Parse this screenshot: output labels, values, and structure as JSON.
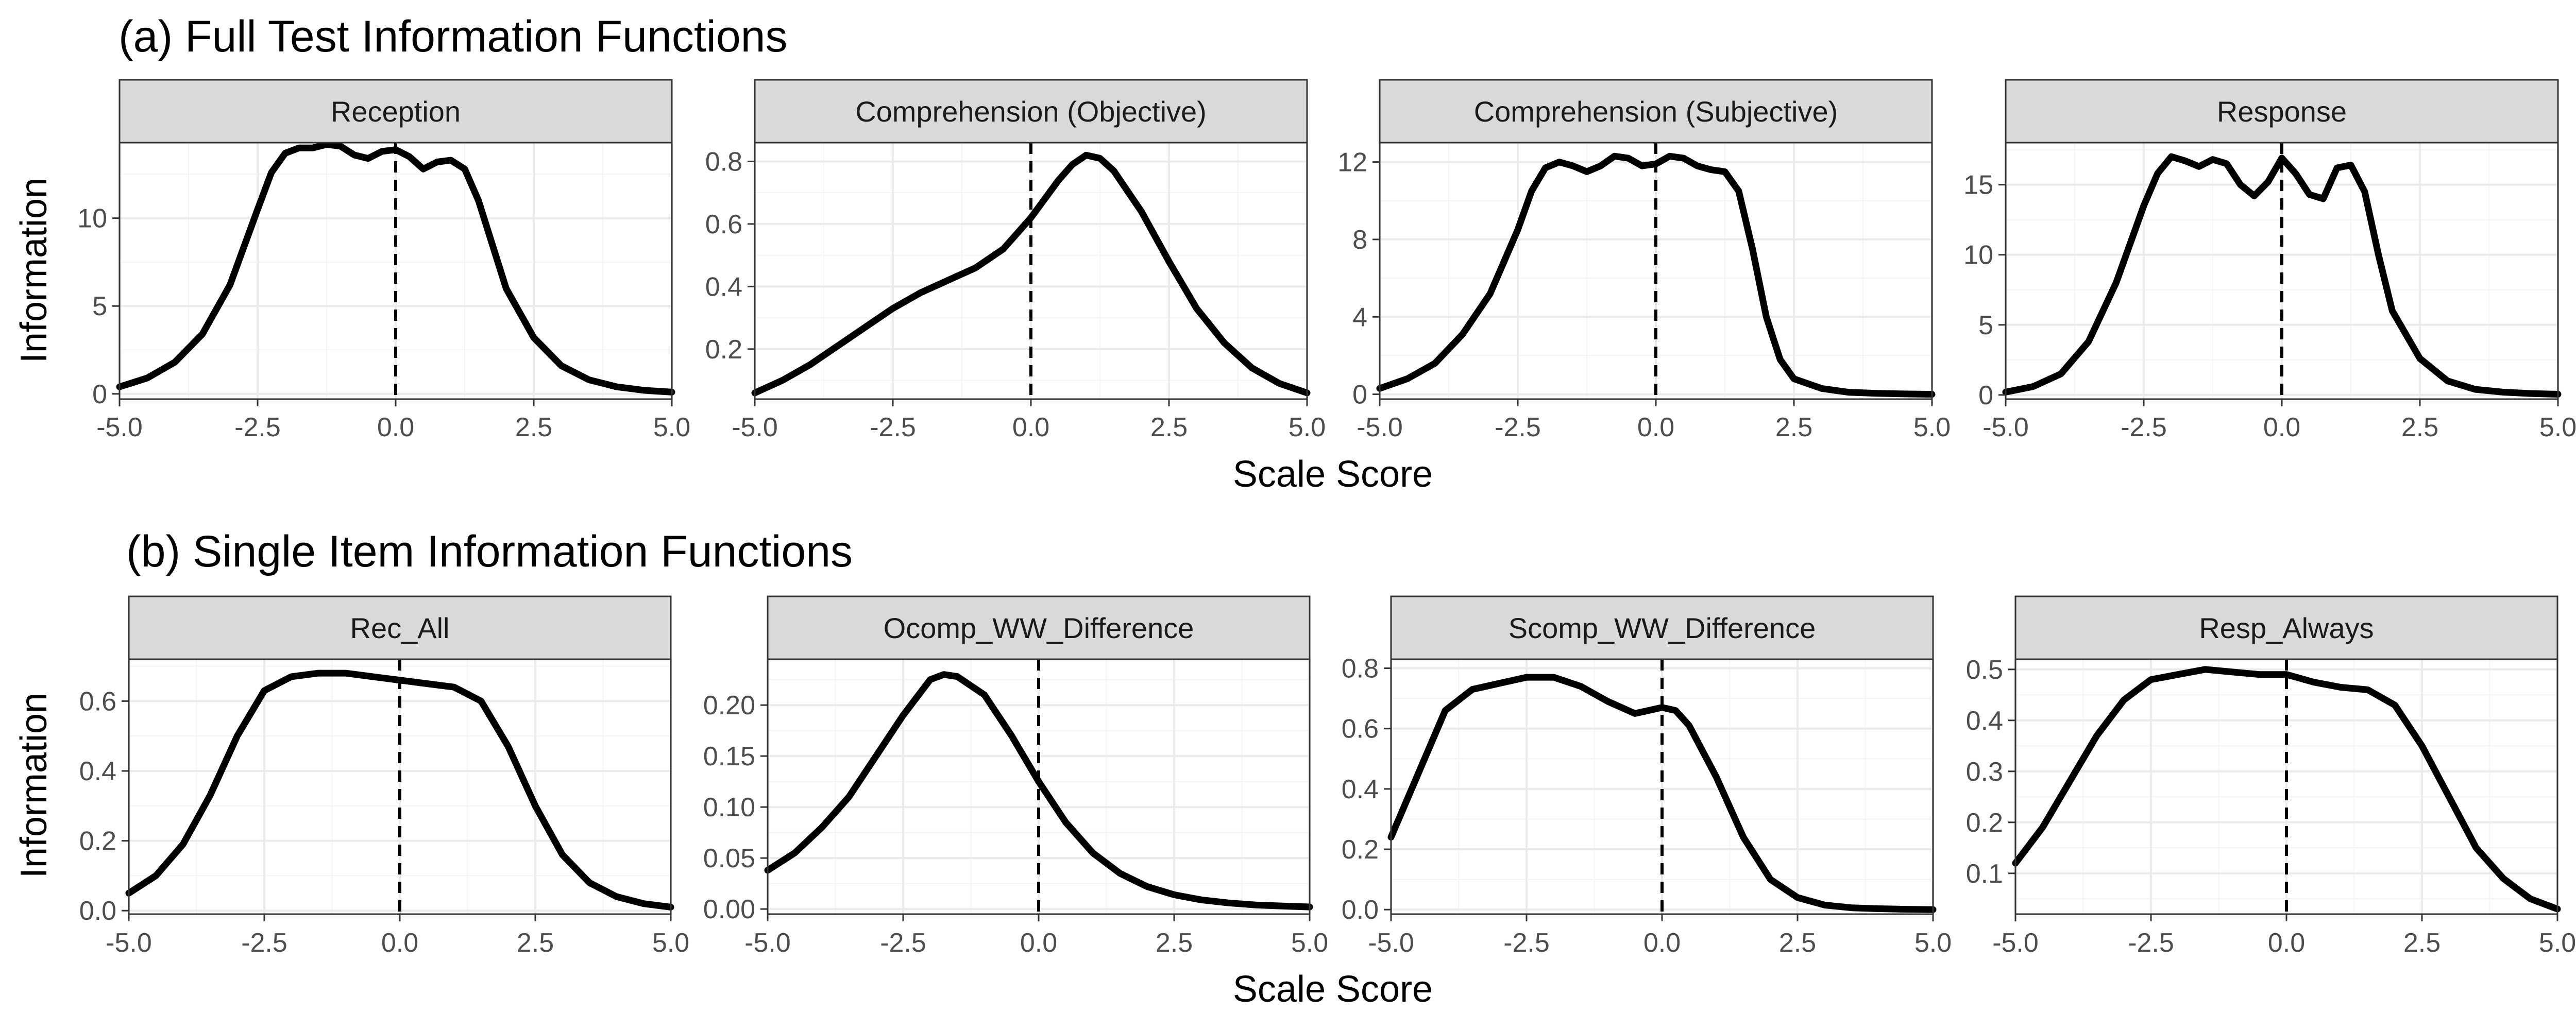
{
  "figure": {
    "x_axis_title": "Scale Score",
    "y_axis_title": "Information"
  },
  "chart_data": [
    {
      "section": "(a) Full Test Information Functions",
      "type": "line",
      "facets": [
        {
          "title": "Reception",
          "xlim": [
            -5.0,
            5.0
          ],
          "ylim": [
            -0.3,
            14.3
          ],
          "xticks": [
            -5.0,
            -2.5,
            0.0,
            2.5,
            5.0
          ],
          "xtick_labels": [
            "-5.0",
            "-2.5",
            "0.0",
            "2.5",
            "5.0"
          ],
          "yticks": [
            0,
            5,
            10
          ],
          "ytick_labels": [
            "0",
            "5",
            "10"
          ],
          "ref_line_x": 0.0,
          "x": [
            -5.0,
            -4.5,
            -4.0,
            -3.5,
            -3.0,
            -2.5,
            -2.25,
            -2.0,
            -1.75,
            -1.5,
            -1.25,
            -1.0,
            -0.75,
            -0.5,
            -0.25,
            0.0,
            0.25,
            0.5,
            0.75,
            1.0,
            1.25,
            1.5,
            1.75,
            2.0,
            2.5,
            3.0,
            3.5,
            4.0,
            4.5,
            5.0
          ],
          "y": [
            0.4,
            0.9,
            1.8,
            3.4,
            6.2,
            10.5,
            12.6,
            13.7,
            14.0,
            14.0,
            14.2,
            14.1,
            13.6,
            13.4,
            13.8,
            13.9,
            13.5,
            12.8,
            13.2,
            13.3,
            12.8,
            11.0,
            8.5,
            6.0,
            3.2,
            1.6,
            0.8,
            0.4,
            0.2,
            0.1
          ]
        },
        {
          "title": "Comprehension (Objective)",
          "xlim": [
            -5.0,
            5.0
          ],
          "ylim": [
            0.04,
            0.86
          ],
          "xticks": [
            -5.0,
            -2.5,
            0.0,
            2.5,
            5.0
          ],
          "xtick_labels": [
            "-5.0",
            "-2.5",
            "0.0",
            "2.5",
            "5.0"
          ],
          "yticks": [
            0.2,
            0.4,
            0.6,
            0.8
          ],
          "ytick_labels": [
            "0.2",
            "0.4",
            "0.6",
            "0.8"
          ],
          "ref_line_x": 0.0,
          "x": [
            -5.0,
            -4.5,
            -4.0,
            -3.5,
            -3.0,
            -2.5,
            -2.0,
            -1.5,
            -1.0,
            -0.5,
            0.0,
            0.5,
            0.75,
            1.0,
            1.25,
            1.5,
            2.0,
            2.5,
            3.0,
            3.5,
            4.0,
            4.5,
            5.0
          ],
          "y": [
            0.06,
            0.1,
            0.15,
            0.21,
            0.27,
            0.33,
            0.38,
            0.42,
            0.46,
            0.52,
            0.62,
            0.74,
            0.79,
            0.82,
            0.81,
            0.77,
            0.64,
            0.48,
            0.33,
            0.22,
            0.14,
            0.09,
            0.06
          ]
        },
        {
          "title": "Comprehension (Subjective)",
          "xlim": [
            -5.0,
            5.0
          ],
          "ylim": [
            -0.25,
            13.0
          ],
          "xticks": [
            -5.0,
            -2.5,
            0.0,
            2.5,
            5.0
          ],
          "xtick_labels": [
            "-5.0",
            "-2.5",
            "0.0",
            "2.5",
            "5.0"
          ],
          "yticks": [
            0,
            4,
            8,
            12
          ],
          "ytick_labels": [
            "0",
            "4",
            "8",
            "12"
          ],
          "ref_line_x": 0.0,
          "x": [
            -5.0,
            -4.5,
            -4.0,
            -3.5,
            -3.0,
            -2.5,
            -2.25,
            -2.0,
            -1.75,
            -1.5,
            -1.25,
            -1.0,
            -0.75,
            -0.5,
            -0.25,
            0.0,
            0.25,
            0.5,
            0.75,
            1.0,
            1.25,
            1.5,
            1.75,
            2.0,
            2.25,
            2.5,
            3.0,
            3.5,
            4.0,
            4.5,
            5.0
          ],
          "y": [
            0.3,
            0.8,
            1.6,
            3.1,
            5.2,
            8.5,
            10.5,
            11.7,
            12.0,
            11.8,
            11.5,
            11.8,
            12.3,
            12.2,
            11.8,
            11.9,
            12.3,
            12.2,
            11.8,
            11.6,
            11.5,
            10.5,
            7.5,
            4.0,
            1.8,
            0.8,
            0.3,
            0.1,
            0.05,
            0.02,
            0.0
          ]
        },
        {
          "title": "Response",
          "xlim": [
            -5.0,
            5.0
          ],
          "ylim": [
            -0.3,
            18.0
          ],
          "xticks": [
            -5.0,
            -2.5,
            0.0,
            2.5,
            5.0
          ],
          "xtick_labels": [
            "-5.0",
            "-2.5",
            "0.0",
            "2.5",
            "5.0"
          ],
          "yticks": [
            0,
            5,
            10,
            15
          ],
          "ytick_labels": [
            "0",
            "5",
            "10",
            "15"
          ],
          "ref_line_x": 0.0,
          "x": [
            -5.0,
            -4.5,
            -4.0,
            -3.5,
            -3.0,
            -2.5,
            -2.25,
            -2.0,
            -1.75,
            -1.5,
            -1.25,
            -1.0,
            -0.75,
            -0.5,
            -0.25,
            0.0,
            0.25,
            0.5,
            0.75,
            1.0,
            1.25,
            1.5,
            1.75,
            2.0,
            2.5,
            3.0,
            3.5,
            4.0,
            4.5,
            5.0
          ],
          "y": [
            0.2,
            0.6,
            1.5,
            3.8,
            8.0,
            13.5,
            15.8,
            17.0,
            16.7,
            16.3,
            16.8,
            16.5,
            15.0,
            14.2,
            15.2,
            16.9,
            15.8,
            14.3,
            14.0,
            16.2,
            16.4,
            14.5,
            10.0,
            6.0,
            2.6,
            1.0,
            0.4,
            0.2,
            0.1,
            0.05
          ]
        }
      ]
    },
    {
      "section": "(b) Single Item Information Functions",
      "type": "line",
      "facets": [
        {
          "title": "Rec_All",
          "xlim": [
            -5.0,
            5.0
          ],
          "ylim": [
            -0.01,
            0.72
          ],
          "xticks": [
            -5.0,
            -2.5,
            0.0,
            2.5,
            5.0
          ],
          "xtick_labels": [
            "-5.0",
            "-2.5",
            "0.0",
            "2.5",
            "5.0"
          ],
          "yticks": [
            0.0,
            0.2,
            0.4,
            0.6
          ],
          "ytick_labels": [
            "0.0",
            "0.2",
            "0.4",
            "0.6"
          ],
          "ref_line_x": 0.0,
          "x": [
            -5.0,
            -4.5,
            -4.0,
            -3.5,
            -3.0,
            -2.5,
            -2.0,
            -1.5,
            -1.0,
            -0.5,
            0.0,
            0.5,
            1.0,
            1.5,
            2.0,
            2.5,
            3.0,
            3.5,
            4.0,
            4.5,
            5.0
          ],
          "y": [
            0.05,
            0.1,
            0.19,
            0.33,
            0.5,
            0.63,
            0.67,
            0.68,
            0.68,
            0.67,
            0.66,
            0.65,
            0.64,
            0.6,
            0.47,
            0.3,
            0.16,
            0.08,
            0.04,
            0.02,
            0.01
          ]
        },
        {
          "title": "Ocomp_WW_Difference",
          "xlim": [
            -5.0,
            5.0
          ],
          "ylim": [
            -0.005,
            0.245
          ],
          "xticks": [
            -5.0,
            -2.5,
            0.0,
            2.5,
            5.0
          ],
          "xtick_labels": [
            "-5.0",
            "-2.5",
            "0.0",
            "2.5",
            "5.0"
          ],
          "yticks": [
            0.0,
            0.05,
            0.1,
            0.15,
            0.2
          ],
          "ytick_labels": [
            "0.00",
            "0.05",
            "0.10",
            "0.15",
            "0.20"
          ],
          "ref_line_x": 0.0,
          "x": [
            -5.0,
            -4.5,
            -4.0,
            -3.5,
            -3.0,
            -2.5,
            -2.0,
            -1.75,
            -1.5,
            -1.0,
            -0.5,
            0.0,
            0.5,
            1.0,
            1.5,
            2.0,
            2.5,
            3.0,
            3.5,
            4.0,
            4.5,
            5.0
          ],
          "y": [
            0.038,
            0.055,
            0.08,
            0.11,
            0.15,
            0.19,
            0.225,
            0.23,
            0.228,
            0.21,
            0.17,
            0.125,
            0.085,
            0.055,
            0.035,
            0.022,
            0.014,
            0.009,
            0.006,
            0.004,
            0.003,
            0.002
          ]
        },
        {
          "title": "Scomp_WW_Difference",
          "xlim": [
            -5.0,
            5.0
          ],
          "ylim": [
            -0.015,
            0.83
          ],
          "xticks": [
            -5.0,
            -2.5,
            0.0,
            2.5,
            5.0
          ],
          "xtick_labels": [
            "-5.0",
            "-2.5",
            "0.0",
            "2.5",
            "5.0"
          ],
          "yticks": [
            0.0,
            0.2,
            0.4,
            0.6,
            0.8
          ],
          "ytick_labels": [
            "0.0",
            "0.2",
            "0.4",
            "0.6",
            "0.8"
          ],
          "ref_line_x": 0.0,
          "x": [
            -5.0,
            -4.5,
            -4.0,
            -3.5,
            -3.0,
            -2.5,
            -2.0,
            -1.5,
            -1.0,
            -0.5,
            -0.25,
            0.0,
            0.25,
            0.5,
            1.0,
            1.5,
            2.0,
            2.5,
            3.0,
            3.5,
            4.0,
            4.5,
            5.0
          ],
          "y": [
            0.24,
            0.45,
            0.66,
            0.73,
            0.75,
            0.77,
            0.77,
            0.74,
            0.69,
            0.65,
            0.66,
            0.67,
            0.66,
            0.61,
            0.44,
            0.24,
            0.1,
            0.04,
            0.015,
            0.006,
            0.003,
            0.001,
            0.0
          ]
        },
        {
          "title": "Resp_Always",
          "xlim": [
            -5.0,
            5.0
          ],
          "ylim": [
            0.02,
            0.52
          ],
          "xticks": [
            -5.0,
            -2.5,
            0.0,
            2.5,
            5.0
          ],
          "xtick_labels": [
            "-5.0",
            "-2.5",
            "0.0",
            "2.5",
            "5.0"
          ],
          "yticks": [
            0.1,
            0.2,
            0.3,
            0.4,
            0.5
          ],
          "ytick_labels": [
            "0.1",
            "0.2",
            "0.3",
            "0.4",
            "0.5"
          ],
          "ref_line_x": 0.0,
          "x": [
            -5.0,
            -4.5,
            -4.0,
            -3.5,
            -3.0,
            -2.5,
            -2.0,
            -1.5,
            -1.0,
            -0.5,
            0.0,
            0.5,
            1.0,
            1.5,
            2.0,
            2.5,
            3.0,
            3.5,
            4.0,
            4.5,
            5.0
          ],
          "y": [
            0.12,
            0.19,
            0.28,
            0.37,
            0.44,
            0.48,
            0.49,
            0.5,
            0.495,
            0.49,
            0.49,
            0.475,
            0.465,
            0.46,
            0.43,
            0.35,
            0.25,
            0.15,
            0.09,
            0.05,
            0.03
          ]
        }
      ]
    }
  ]
}
